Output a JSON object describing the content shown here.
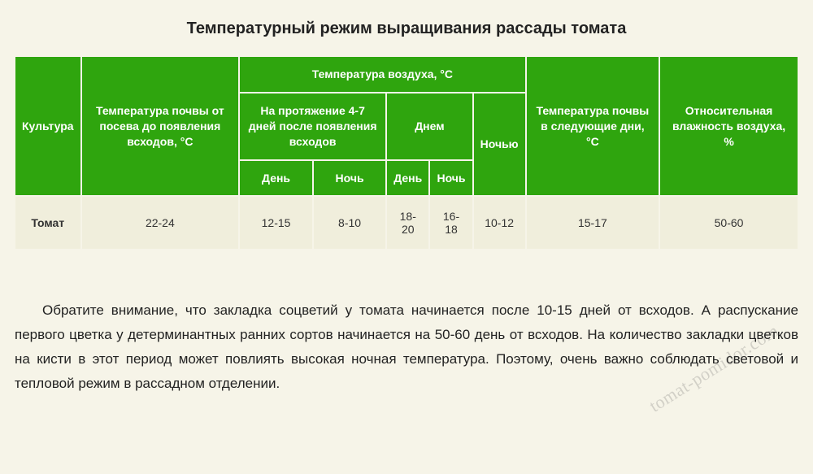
{
  "title": "Температурный режим выращивания рассады томата",
  "table": {
    "header_colors": {
      "bg": "#2fa50e",
      "fg": "#ffffff",
      "border": "#f6f4e8"
    },
    "row_color": "#f0eedc",
    "columns": {
      "culture": "Культура",
      "soil_sowing": "Температура почвы от посева до появления всходов, °С",
      "air_group": "Температура воздуха, °С",
      "after47": "На протяжение 4-7 дней после появления всходов",
      "daytime": "Днем",
      "night": "Ночью",
      "soil_following": "Температура почвы в следующие дни, °С",
      "humidity": "Относительная влажность воздуха, %",
      "day": "День",
      "nightcol": "Ночь",
      "day2": "День",
      "night2": "Ночь"
    },
    "rows": [
      {
        "culture": "Томат",
        "soil_sowing": "22-24",
        "after47_day": "12-15",
        "after47_night": "8-10",
        "daytime_day": "18-20",
        "daytime_night": "16-18",
        "night": "10-12",
        "soil_following": "15-17",
        "humidity": "50-60"
      }
    ]
  },
  "note": "Обратите внимание, что закладка соцветий у томата начинается после 10-15 дней от всходов. А распускание первого цветка у детерминантных ранних сортов начинается на 50-60 день от всходов. На количество закладки цветков на кисти в этот период может повлиять высокая ночная температура. Поэтому, очень важно соблюдать световой и тепловой режим в рассадном отделении.",
  "watermark": "tomat-pomidor.com"
}
